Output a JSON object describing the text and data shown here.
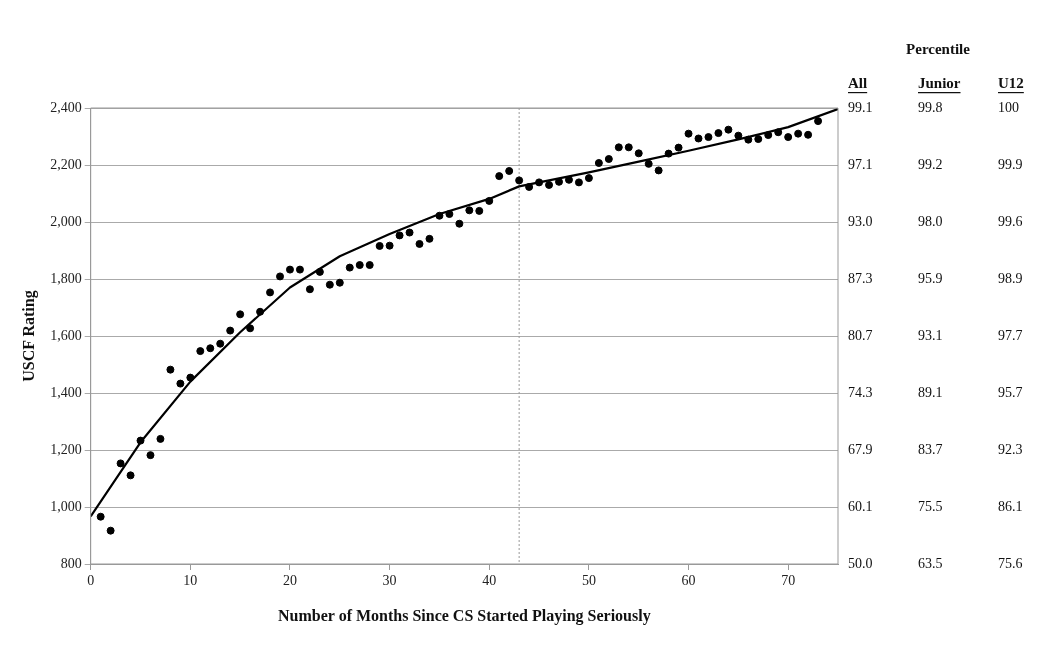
{
  "chart_data": {
    "type": "scatter",
    "xlabel": "Number of Months Since CS Started Playing Seriously",
    "ylabel": "USCF Rating",
    "annotations": [
      "Percentile",
      "All",
      "Junior",
      "U12",
      "99.1",
      "99.8",
      "100",
      "97.1",
      "99.2",
      "99.9",
      "93.0",
      "98.0",
      "99.6",
      "87.3",
      "95.9",
      "98.9",
      "80.7",
      "93.1",
      "97.7",
      "74.3",
      "89.1",
      "95.7",
      "67.9",
      "83.7",
      "92.3",
      "60.1",
      "75.5",
      "86.1",
      "50.0",
      "63.5",
      "75.6"
    ],
    "xlim": [
      0,
      75
    ],
    "xticks": [
      0,
      10,
      20,
      30,
      40,
      50,
      60,
      70
    ],
    "ylim": [
      800,
      2400
    ],
    "yticks": [
      {
        "value": 800,
        "label": "800"
      },
      {
        "value": 1000,
        "label": "1,000"
      },
      {
        "value": 1200,
        "label": "1,200"
      },
      {
        "value": 1400,
        "label": "1,400"
      },
      {
        "value": 1600,
        "label": "1,600"
      },
      {
        "value": 1800,
        "label": "1,800"
      },
      {
        "value": 2000,
        "label": "2,000"
      },
      {
        "value": 2200,
        "label": "2,200"
      },
      {
        "value": 2400,
        "label": "2,400"
      }
    ],
    "grid": "y",
    "ref_lines": [
      {
        "axis": "x",
        "value": 43,
        "color": "#999999",
        "line_style": "dotted"
      }
    ],
    "series": [
      {
        "type": "scatter",
        "color": "#000000",
        "marker": "circle",
        "x": [
          1,
          2,
          3,
          4,
          5,
          6,
          7,
          8,
          9,
          10,
          11,
          12,
          13,
          14,
          15,
          16,
          17,
          18,
          19,
          20,
          21,
          22,
          23,
          24,
          25,
          26,
          27,
          28,
          29,
          30,
          31,
          32,
          33,
          34,
          35,
          36,
          37,
          38,
          39,
          40,
          41,
          42,
          43,
          44,
          45,
          46,
          47,
          48,
          49,
          50,
          51,
          52,
          53,
          54,
          55,
          56,
          57,
          58,
          59,
          60,
          61,
          62,
          63,
          64,
          65,
          66,
          67,
          68,
          69,
          70,
          71,
          72,
          73
        ],
        "values": [
          966,
          917,
          1153,
          1111,
          1233,
          1182,
          1239,
          1482,
          1433,
          1454,
          1547,
          1557,
          1573,
          1619,
          1676,
          1627,
          1685,
          1753,
          1809,
          1833,
          1833,
          1764,
          1825,
          1780,
          1787,
          1840,
          1849,
          1849,
          1916,
          1917,
          1953,
          1963,
          1923,
          1941,
          2022,
          2028,
          1994,
          2041,
          2039,
          2074,
          2161,
          2179,
          2146,
          2123,
          2139,
          2130,
          2141,
          2148,
          2139,
          2154,
          2207,
          2221,
          2262,
          2262,
          2241,
          2204,
          2181,
          2240,
          2261,
          2310,
          2293,
          2298,
          2312,
          2324,
          2303,
          2289,
          2291,
          2305,
          2315,
          2298,
          2310,
          2306,
          2354
        ]
      },
      {
        "type": "line",
        "color": "#000000",
        "marker": "none",
        "x": [
          0,
          5,
          10,
          15,
          20,
          25,
          30,
          35,
          40,
          43,
          50,
          55,
          60,
          65,
          70,
          75
        ],
        "values": [
          967,
          1227,
          1440,
          1613,
          1770,
          1880,
          1958,
          2028,
          2081,
          2125,
          2174,
          2212,
          2250,
          2290,
          2333,
          2396
        ]
      }
    ]
  }
}
